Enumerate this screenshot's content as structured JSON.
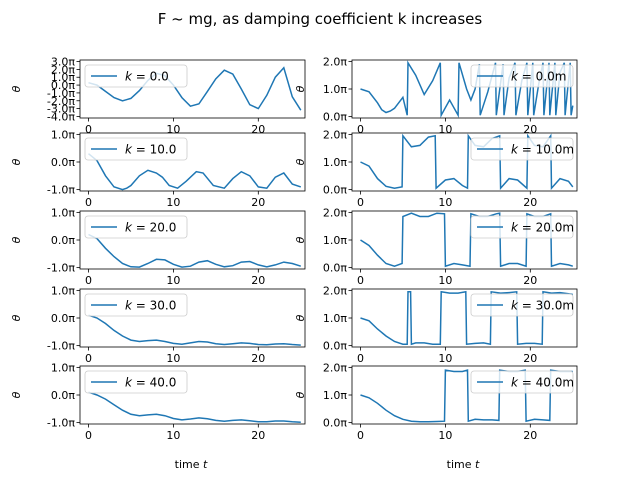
{
  "title": "F ~ mg, as damping coefficient k increases",
  "colors": {
    "line": "#1f77b4",
    "frame": "#000000",
    "legend_border": "#cccccc"
  },
  "chart_data": {
    "type": "line",
    "layout": {
      "rows": 5,
      "cols": 2
    },
    "shared_xlabel": "time t",
    "panels": [
      {
        "row": 0,
        "col": 0,
        "xlim": [
          -1,
          25.5
        ],
        "ylim": [
          -4.2,
          3.2
        ],
        "yticks": [
          -4,
          -3,
          -2,
          -1,
          0,
          1,
          2,
          3
        ],
        "ytick_labels": [
          "-4.0π",
          "-3.0π",
          "-2.0π",
          "-1.0π",
          "0.0π",
          "1.0π",
          "2.0π",
          "3.0π"
        ],
        "xticks": [
          0,
          10,
          20
        ],
        "xtick_labels": [
          "0",
          "10",
          "20"
        ],
        "ylabel": "θ",
        "legend_label": "k = 0.0",
        "legend_loc": "upper-left",
        "series": [
          {
            "name": "k = 0.0",
            "x": [
              0,
              1,
              2,
              3,
              4,
              5,
              6,
              7,
              8,
              9,
              10,
              11,
              12,
              13,
              14,
              15,
              16,
              17,
              18,
              19,
              20,
              21,
              22,
              23,
              24,
              25
            ],
            "y": [
              0.3,
              0.0,
              -0.8,
              -1.6,
              -2.0,
              -1.7,
              -0.7,
              0.6,
              1.5,
              1.2,
              0.0,
              -1.6,
              -2.7,
              -2.4,
              -0.8,
              0.8,
              1.9,
              1.4,
              -0.5,
              -2.5,
              -3.0,
              -1.3,
              1.0,
              2.2,
              -1.5,
              -3.2
            ]
          }
        ]
      },
      {
        "row": 0,
        "col": 1,
        "xlim": [
          -1,
          25.5
        ],
        "ylim": [
          -0.05,
          2.05
        ],
        "yticks": [
          0,
          1,
          2
        ],
        "ytick_labels": [
          "0.0π",
          "1.0π",
          "2.0π"
        ],
        "xticks": [
          0,
          10,
          20
        ],
        "xtick_labels": [
          "0",
          "10",
          "20"
        ],
        "ylabel": "θ",
        "legend_label": "k = 0.0m",
        "legend_loc": "upper-right",
        "series": [
          {
            "name": "k = 0.0m",
            "x": [
              0,
              1,
              2,
              2.5,
              3,
              3.5,
              4,
              5,
              5.5,
              5.6,
              6.5,
              7.5,
              8.5,
              9.4,
              9.5,
              10.5,
              11.5,
              11.6,
              12.5,
              13,
              13.5,
              14,
              14.1,
              15,
              15.9,
              16,
              16.8,
              16.9,
              17.5,
              18.2,
              18.3,
              19,
              19.6,
              19.7,
              20.3,
              20.4,
              21,
              21.5,
              21.6,
              22.2,
              22.3,
              22.9,
              23,
              23.5,
              24,
              24.1,
              24.7,
              24.8,
              25
            ],
            "y": [
              1.0,
              0.9,
              0.5,
              0.25,
              0.15,
              0.2,
              0.3,
              0.7,
              0.05,
              1.95,
              1.5,
              0.8,
              1.3,
              1.95,
              0.05,
              0.6,
              0.05,
              1.95,
              1.0,
              0.6,
              1.0,
              1.9,
              0.05,
              0.9,
              1.95,
              0.05,
              1.9,
              0.05,
              1.4,
              1.95,
              0.05,
              1.3,
              1.95,
              0.05,
              1.95,
              0.05,
              1.2,
              1.95,
              0.05,
              1.95,
              0.05,
              1.95,
              0.05,
              1.6,
              1.95,
              0.05,
              1.95,
              0.05,
              0.4
            ]
          }
        ]
      },
      {
        "row": 1,
        "col": 0,
        "xlim": [
          -1,
          25.5
        ],
        "ylim": [
          -1.05,
          1.05
        ],
        "yticks": [
          -1,
          0,
          1
        ],
        "ytick_labels": [
          "-1.0π",
          "0.0π",
          "1.0π"
        ],
        "xticks": [
          0,
          10,
          20
        ],
        "xtick_labels": [
          "0",
          "10",
          "20"
        ],
        "ylabel": "θ",
        "legend_label": "k = 10.0",
        "legend_loc": "upper-left",
        "series": [
          {
            "name": "k = 10.0",
            "x": [
              0,
              1,
              2,
              3,
              4,
              4.5,
              5,
              6,
              7,
              8,
              8.7,
              9.5,
              10.5,
              11.5,
              12.7,
              13.5,
              14.7,
              16,
              17,
              18,
              19,
              20,
              21,
              22,
              23,
              24,
              25
            ],
            "y": [
              0.3,
              0.05,
              -0.5,
              -0.9,
              -1.0,
              -0.95,
              -0.85,
              -0.5,
              -0.3,
              -0.4,
              -0.55,
              -0.85,
              -0.95,
              -0.7,
              -0.35,
              -0.4,
              -0.85,
              -0.95,
              -0.6,
              -0.35,
              -0.5,
              -0.9,
              -0.95,
              -0.55,
              -0.4,
              -0.8,
              -0.9
            ]
          }
        ]
      },
      {
        "row": 1,
        "col": 1,
        "xlim": [
          -1,
          25.5
        ],
        "ylim": [
          -0.05,
          2.05
        ],
        "yticks": [
          0,
          1,
          2
        ],
        "ytick_labels": [
          "0.0π",
          "1.0π",
          "2.0π"
        ],
        "xticks": [
          0,
          10,
          20
        ],
        "xtick_labels": [
          "0",
          "10",
          "20"
        ],
        "ylabel": "θ",
        "legend_label": "k = 10.0m",
        "legend_loc": "upper-right",
        "series": [
          {
            "name": "k = 10.0m",
            "x": [
              0,
              1,
              2,
              3,
              4,
              4.9,
              5,
              6,
              7,
              8,
              8.8,
              8.9,
              10,
              11,
              12,
              12.6,
              12.7,
              13.5,
              14.5,
              15.5,
              16.4,
              16.5,
              17.5,
              18.5,
              19.6,
              19.7,
              20.5,
              21.5,
              22.4,
              22.5,
              23.5,
              24.5,
              25
            ],
            "y": [
              1.0,
              0.85,
              0.4,
              0.12,
              0.05,
              0.1,
              1.95,
              1.55,
              1.6,
              1.9,
              1.95,
              0.05,
              0.35,
              0.4,
              0.15,
              0.05,
              1.95,
              1.6,
              1.55,
              1.85,
              1.95,
              0.05,
              0.4,
              0.35,
              0.05,
              1.95,
              1.6,
              1.55,
              1.95,
              0.05,
              0.4,
              0.3,
              0.1
            ]
          }
        ]
      },
      {
        "row": 2,
        "col": 0,
        "xlim": [
          -1,
          25.5
        ],
        "ylim": [
          -1.05,
          1.05
        ],
        "yticks": [
          -1,
          0,
          1
        ],
        "ytick_labels": [
          "-1.0π",
          "0.0π",
          "1.0π"
        ],
        "xticks": [
          0,
          10,
          20
        ],
        "xtick_labels": [
          "0",
          "10",
          "20"
        ],
        "ylabel": "θ",
        "legend_label": "k = 20.0",
        "legend_loc": "upper-left",
        "series": [
          {
            "name": "k = 20.0",
            "x": [
              0,
              1,
              2,
              3,
              4,
              5,
              6,
              7,
              8,
              9,
              10,
              11,
              12,
              13,
              14,
              15,
              16,
              17,
              18,
              19,
              20,
              21,
              22,
              23,
              24,
              25
            ],
            "y": [
              0.2,
              0.05,
              -0.3,
              -0.6,
              -0.85,
              -0.97,
              -0.98,
              -0.85,
              -0.7,
              -0.72,
              -0.88,
              -0.98,
              -0.95,
              -0.8,
              -0.75,
              -0.88,
              -0.97,
              -0.93,
              -0.8,
              -0.78,
              -0.9,
              -0.97,
              -0.9,
              -0.8,
              -0.85,
              -0.95
            ]
          }
        ]
      },
      {
        "row": 2,
        "col": 1,
        "xlim": [
          -1,
          25.5
        ],
        "ylim": [
          -0.05,
          2.05
        ],
        "yticks": [
          0,
          1,
          2
        ],
        "ytick_labels": [
          "0.0π",
          "1.0π",
          "2.0π"
        ],
        "xticks": [
          0,
          10,
          20
        ],
        "xtick_labels": [
          "0",
          "10",
          "20"
        ],
        "ylabel": "θ",
        "legend_label": "k = 20.0m",
        "legend_loc": "upper-right",
        "series": [
          {
            "name": "k = 20.0m",
            "x": [
              0,
              1,
              2,
              3,
              4,
              4.9,
              5,
              6,
              7,
              8,
              9,
              9.9,
              10,
              11,
              12,
              12.9,
              13,
              14,
              15,
              16,
              16.4,
              16.5,
              17.5,
              18.5,
              19.5,
              19.6,
              20.5,
              21.5,
              22.4,
              22.5,
              23.5,
              24.5,
              25
            ],
            "y": [
              1.0,
              0.8,
              0.45,
              0.15,
              0.05,
              0.15,
              1.85,
              1.97,
              1.85,
              1.85,
              1.97,
              1.95,
              0.05,
              0.15,
              0.1,
              0.05,
              1.95,
              1.85,
              1.85,
              1.95,
              1.97,
              0.05,
              0.15,
              0.15,
              0.05,
              1.95,
              1.85,
              1.85,
              1.95,
              0.05,
              0.15,
              0.1,
              0.05
            ]
          }
        ]
      },
      {
        "row": 3,
        "col": 0,
        "xlim": [
          -1,
          25.5
        ],
        "ylim": [
          -1.05,
          1.05
        ],
        "yticks": [
          -1,
          0,
          1
        ],
        "ytick_labels": [
          "-1.0π",
          "0.0π",
          "1.0π"
        ],
        "xticks": [
          0,
          10,
          20
        ],
        "xtick_labels": [
          "0",
          "10",
          "20"
        ],
        "ylabel": "θ",
        "legend_label": "k = 30.0",
        "legend_loc": "upper-left",
        "series": [
          {
            "name": "k = 30.0",
            "x": [
              0,
              1,
              2,
              3,
              4,
              5,
              6,
              7,
              8,
              9,
              10,
              11,
              12,
              13,
              14,
              15,
              16,
              17,
              18,
              19,
              20,
              21,
              22,
              23,
              24,
              25
            ],
            "y": [
              0.1,
              0.0,
              -0.2,
              -0.45,
              -0.65,
              -0.8,
              -0.85,
              -0.82,
              -0.8,
              -0.85,
              -0.92,
              -0.95,
              -0.9,
              -0.85,
              -0.87,
              -0.93,
              -0.96,
              -0.93,
              -0.9,
              -0.92,
              -0.96,
              -0.97,
              -0.94,
              -0.93,
              -0.96,
              -0.98
            ]
          }
        ]
      },
      {
        "row": 3,
        "col": 1,
        "xlim": [
          -1,
          25.5
        ],
        "ylim": [
          -0.05,
          2.05
        ],
        "yticks": [
          0,
          1,
          2
        ],
        "ytick_labels": [
          "0.0π",
          "1.0π",
          "2.0π"
        ],
        "xticks": [
          0,
          10,
          20
        ],
        "xtick_labels": [
          "0",
          "10",
          "20"
        ],
        "ylabel": "θ",
        "legend_label": "k = 30.0m",
        "legend_loc": "upper-right",
        "series": [
          {
            "name": "k = 30.0m",
            "x": [
              0,
              1,
              2,
              3,
              4,
              5,
              5.5,
              5.6,
              5.9,
              6.0,
              6.5,
              7.5,
              8.5,
              9.4,
              9.5,
              10.5,
              11.5,
              12.4,
              12.5,
              13.5,
              14.5,
              15.3,
              15.4,
              16.5,
              17.5,
              18.4,
              18.5,
              19.5,
              20.5,
              21.4,
              21.5,
              22.5,
              23.5,
              24.5,
              25
            ],
            "y": [
              1.0,
              0.9,
              0.6,
              0.35,
              0.15,
              0.05,
              0.05,
              1.95,
              1.95,
              0.05,
              0.1,
              0.1,
              0.05,
              0.05,
              1.95,
              1.9,
              1.9,
              1.95,
              0.05,
              0.08,
              0.1,
              0.05,
              1.95,
              1.9,
              1.92,
              1.95,
              0.05,
              0.08,
              0.08,
              0.05,
              1.95,
              1.9,
              1.92,
              1.88,
              1.85
            ]
          }
        ]
      },
      {
        "row": 4,
        "col": 0,
        "xlim": [
          -1,
          25.5
        ],
        "ylim": [
          -1.05,
          1.05
        ],
        "yticks": [
          -1,
          0,
          1
        ],
        "ytick_labels": [
          "-1.0π",
          "0.0π",
          "1.0π"
        ],
        "xticks": [
          0,
          10,
          20
        ],
        "xtick_labels": [
          "0",
          "10",
          "20"
        ],
        "ylabel": "θ",
        "legend_label": "k = 40.0",
        "legend_loc": "upper-left",
        "series": [
          {
            "name": "k = 40.0",
            "x": [
              0,
              1,
              2,
              3,
              4,
              5,
              6,
              7,
              8,
              9,
              10,
              11,
              12,
              13,
              14,
              15,
              16,
              17,
              18,
              19,
              20,
              21,
              22,
              23,
              24,
              25
            ],
            "y": [
              0.1,
              0.0,
              -0.15,
              -0.35,
              -0.55,
              -0.7,
              -0.75,
              -0.72,
              -0.7,
              -0.75,
              -0.85,
              -0.9,
              -0.87,
              -0.83,
              -0.86,
              -0.92,
              -0.95,
              -0.92,
              -0.9,
              -0.93,
              -0.97,
              -0.97,
              -0.94,
              -0.94,
              -0.97,
              -0.99
            ]
          }
        ]
      },
      {
        "row": 4,
        "col": 1,
        "xlim": [
          -1,
          25.5
        ],
        "ylim": [
          -0.05,
          2.05
        ],
        "yticks": [
          0,
          1,
          2
        ],
        "ytick_labels": [
          "0.0π",
          "1.0π",
          "2.0π"
        ],
        "xticks": [
          0,
          10,
          20
        ],
        "xtick_labels": [
          "0",
          "10",
          "20"
        ],
        "ylabel": "θ",
        "legend_label": "k = 40.0m",
        "legend_loc": "upper-right",
        "series": [
          {
            "name": "k = 40.0m",
            "x": [
              0,
              1,
              2,
              3,
              4,
              5,
              6,
              7,
              8,
              9,
              9.9,
              10,
              11,
              12,
              12.6,
              12.7,
              13.5,
              14.5,
              15.5,
              16.3,
              16.4,
              17.5,
              18.5,
              19.4,
              19.5,
              20.5,
              21.5,
              22.3,
              22.4,
              23.5,
              24.5,
              25
            ],
            "y": [
              1.0,
              0.9,
              0.7,
              0.45,
              0.25,
              0.12,
              0.05,
              0.03,
              0.03,
              0.04,
              0.05,
              1.9,
              1.85,
              1.85,
              1.9,
              0.05,
              0.12,
              0.1,
              0.1,
              0.08,
              1.9,
              1.85,
              1.85,
              1.9,
              0.05,
              0.12,
              0.1,
              0.08,
              1.9,
              1.85,
              1.85,
              1.85
            ]
          }
        ]
      }
    ]
  }
}
